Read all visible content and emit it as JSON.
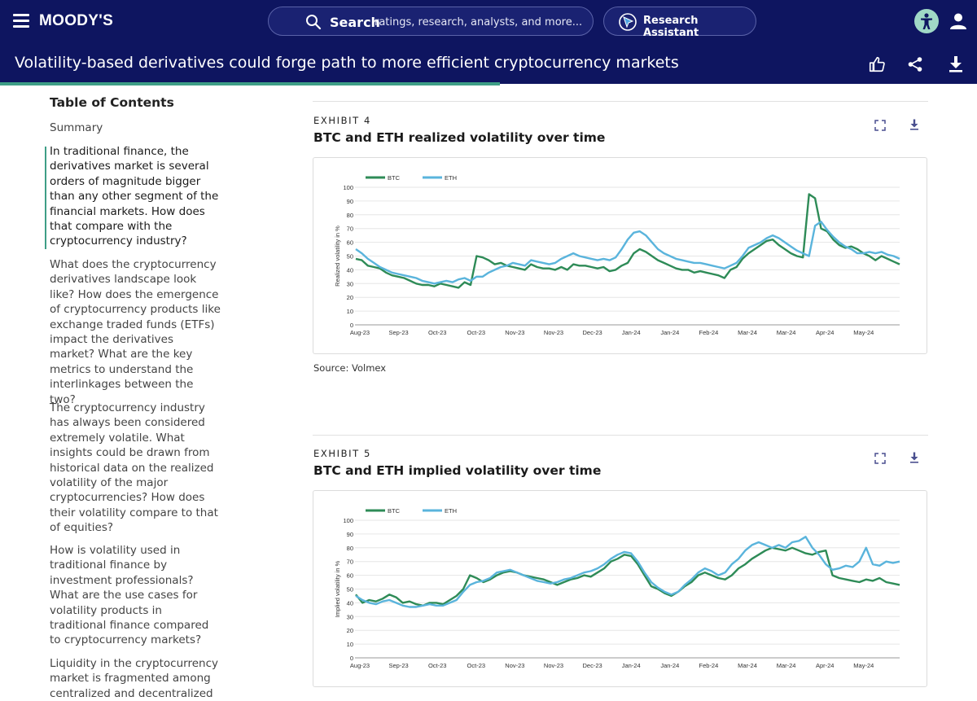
{
  "header": {
    "logo": "MOODY'S",
    "search_label": "Search",
    "search_placeholder": "ratings, research, analysts, and more...",
    "assistant_label": "Research Assistant"
  },
  "document": {
    "title": "Volatility-based derivatives could forge path to more efficient cryptocurrency markets",
    "reading_progress": 0.512
  },
  "toc": {
    "title": "Table of Contents",
    "items": [
      "Summary",
      "In traditional finance, the derivatives market is several orders of magnitude bigger than any other segment of the financial markets. How does that compare with the cryptocurrency industry?",
      "What does the cryptocurrency derivatives landscape look like? How does the emergence of cryptocurrency products like exchange traded funds (ETFs) impact the derivatives market? What are the key metrics to understand the interlinkages between the two?",
      "The cryptocurrency industry has always been considered extremely volatile. What insights could be drawn from historical data on the realized volatility of the major cryptocurrencies? How does their volatility compare to that of equities?",
      "How is volatility used in traditional finance by investment professionals? What are the use cases for volatility products in traditional finance compared to cryptocurrency markets?",
      "Liquidity in the cryptocurrency market is fragmented among centralized and decentralized"
    ]
  },
  "exhibits": [
    {
      "label": "EXHIBIT 4",
      "title": "BTC and ETH realized volatility over time",
      "source": "Source: Volmex"
    },
    {
      "label": "EXHIBIT 5",
      "title": "BTC and ETH implied volatility over time"
    }
  ],
  "colors": {
    "navy": "#0e1560",
    "btc": "#2e8b57",
    "eth": "#5ab4dc",
    "accent": "#3e9e86"
  },
  "chart_data": [
    {
      "type": "line",
      "title": "BTC and ETH realized volatility over time",
      "ylabel": "Realized volatility in %",
      "xlabel": "",
      "ylim": [
        0,
        100
      ],
      "yticks": [
        "0",
        "10",
        "20",
        "30",
        "40",
        "50",
        "60",
        "70",
        "80",
        "90",
        "100"
      ],
      "xtick_labels": [
        "Aug-23",
        "Sep-23",
        "Oct-23",
        "Oct-23",
        "Nov-23",
        "Nov-23",
        "Dec-23",
        "Jan-24",
        "Jan-24",
        "Feb-24",
        "Mar-24",
        "Mar-24",
        "Apr-24",
        "May-24"
      ],
      "legend": "top-left",
      "series": [
        {
          "name": "BTC",
          "color": "#2e8b57",
          "values": [
            48,
            47,
            43,
            42,
            41,
            38,
            36,
            35,
            34,
            32,
            30,
            29,
            29,
            28,
            30,
            29,
            28,
            27,
            31,
            29,
            50,
            49,
            47,
            44,
            45,
            43,
            42,
            41,
            40,
            44,
            42,
            41,
            41,
            40,
            42,
            40,
            44,
            43,
            43,
            42,
            41,
            42,
            39,
            40,
            43,
            45,
            52,
            55,
            53,
            50,
            47,
            45,
            43,
            41,
            40,
            40,
            38,
            39,
            38,
            37,
            36,
            34,
            40,
            42,
            48,
            52,
            55,
            58,
            61,
            62,
            58,
            55,
            52,
            50,
            49,
            95,
            92,
            70,
            68,
            62,
            58,
            56,
            57,
            55,
            52,
            50,
            47,
            50,
            48,
            46,
            44
          ]
        },
        {
          "name": "ETH",
          "color": "#5ab4dc",
          "values": [
            55,
            52,
            48,
            45,
            42,
            40,
            38,
            37,
            36,
            35,
            34,
            32,
            31,
            30,
            31,
            32,
            31,
            33,
            34,
            32,
            35,
            35,
            38,
            40,
            42,
            43,
            45,
            44,
            43,
            47,
            46,
            45,
            44,
            45,
            48,
            50,
            52,
            50,
            49,
            48,
            47,
            48,
            47,
            49,
            55,
            62,
            67,
            68,
            65,
            60,
            55,
            52,
            50,
            48,
            47,
            46,
            45,
            45,
            44,
            43,
            42,
            41,
            43,
            45,
            50,
            56,
            58,
            60,
            63,
            65,
            63,
            60,
            57,
            54,
            52,
            50,
            72,
            75,
            69,
            64,
            60,
            57,
            55,
            52,
            52,
            53,
            52,
            53,
            51,
            50,
            48
          ]
        }
      ]
    },
    {
      "type": "line",
      "title": "BTC and ETH implied volatility over time",
      "ylabel": "Implied volatility in %",
      "xlabel": "",
      "ylim": [
        0,
        100
      ],
      "yticks": [
        "0",
        "10",
        "20",
        "30",
        "40",
        "50",
        "60",
        "70",
        "80",
        "90",
        "100"
      ],
      "xtick_labels": [
        "Aug-23",
        "Sep-23",
        "Oct-23",
        "Oct-23",
        "Nov-23",
        "Nov-23",
        "Dec-23",
        "Jan-24",
        "Jan-24",
        "Feb-24",
        "Mar-24",
        "Mar-24",
        "Apr-24",
        "May-24"
      ],
      "legend": "top-left",
      "series": [
        {
          "name": "BTC",
          "color": "#2e8b57",
          "values": [
            46,
            40,
            42,
            41,
            43,
            46,
            44,
            40,
            41,
            39,
            38,
            40,
            40,
            39,
            42,
            45,
            50,
            60,
            58,
            55,
            57,
            60,
            62,
            63,
            62,
            60,
            59,
            58,
            57,
            55,
            53,
            55,
            57,
            58,
            60,
            59,
            62,
            65,
            70,
            72,
            75,
            74,
            68,
            60,
            52,
            50,
            47,
            45,
            48,
            52,
            55,
            60,
            62,
            60,
            58,
            57,
            60,
            65,
            68,
            72,
            75,
            78,
            80,
            79,
            78,
            80,
            78,
            76,
            75,
            77,
            78,
            60,
            58,
            57,
            56,
            55,
            57,
            56,
            58,
            55,
            54,
            53
          ]
        },
        {
          "name": "ETH",
          "color": "#5ab4dc",
          "values": [
            45,
            42,
            40,
            39,
            41,
            42,
            40,
            38,
            37,
            37,
            38,
            39,
            38,
            38,
            40,
            42,
            48,
            53,
            55,
            56,
            58,
            62,
            63,
            64,
            62,
            60,
            58,
            56,
            55,
            54,
            55,
            57,
            58,
            60,
            62,
            63,
            65,
            68,
            72,
            75,
            77,
            76,
            70,
            62,
            55,
            51,
            48,
            46,
            48,
            53,
            57,
            62,
            65,
            63,
            60,
            62,
            68,
            72,
            78,
            82,
            84,
            82,
            80,
            82,
            80,
            84,
            85,
            88,
            80,
            75,
            68,
            64,
            65,
            67,
            66,
            70,
            80,
            68,
            67,
            70,
            69,
            70
          ]
        }
      ]
    }
  ]
}
